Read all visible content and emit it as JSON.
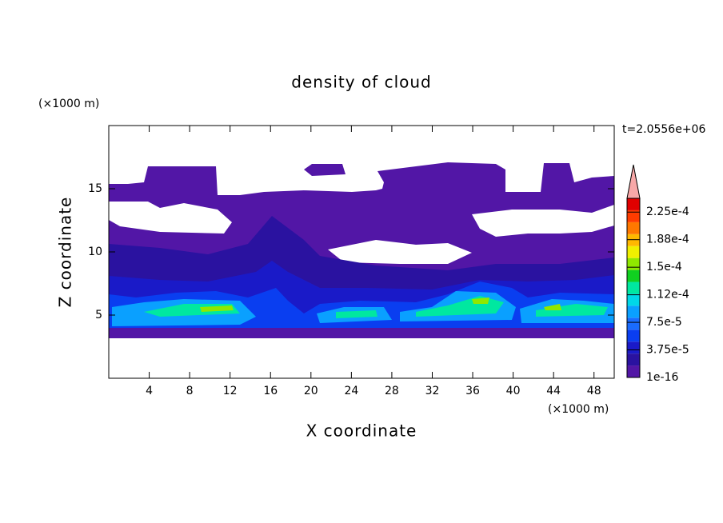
{
  "chart_data": {
    "type": "contour",
    "title": "density of cloud",
    "x_label": "X coordinate",
    "y_label": "Z coordinate",
    "x_unit": "(×1000 m)",
    "y_unit": "(×1000 m)",
    "annotation": "t=2.0556e+06",
    "xlim": [
      0,
      50
    ],
    "ylim": [
      0,
      20
    ],
    "xticks": [
      4,
      8,
      12,
      16,
      20,
      24,
      28,
      32,
      36,
      40,
      44,
      48
    ],
    "yticks": [
      5,
      10,
      15
    ],
    "colorbar": {
      "clim": [
        1e-16,
        0.00024375
      ],
      "ticks": [
        {
          "value": 1e-16,
          "label": "1e-16"
        },
        {
          "value": 3.75e-05,
          "label": "3.75e-5"
        },
        {
          "value": 7.5e-05,
          "label": "7.5e-5"
        },
        {
          "value": 0.0001125,
          "label": "1.12e-4"
        },
        {
          "value": 0.00015,
          "label": "1.5e-4"
        },
        {
          "value": 0.0001875,
          "label": "1.88e-4"
        },
        {
          "value": 0.000225,
          "label": "2.25e-4"
        }
      ],
      "colors": [
        "#5216a6",
        "#2a12a0",
        "#1a1ac8",
        "#0a3ef0",
        "#1a6cff",
        "#0aa0ff",
        "#00d8e8",
        "#00e8a0",
        "#10d020",
        "#90e800",
        "#f0f000",
        "#ffb800",
        "#ff7800",
        "#ff3c00",
        "#e00000"
      ],
      "extend_color": "#f8a8a8"
    }
  }
}
